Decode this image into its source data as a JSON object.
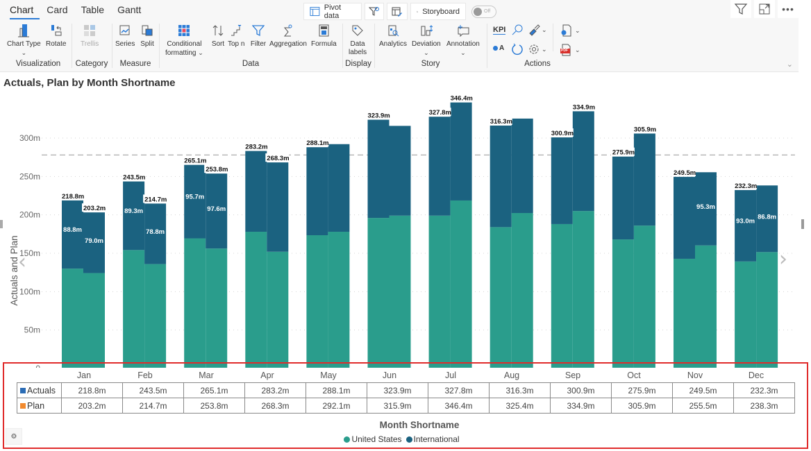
{
  "ribbon": {
    "tabs": [
      {
        "label": "Chart",
        "active": true
      },
      {
        "label": "Card",
        "active": false
      },
      {
        "label": "Table",
        "active": false
      },
      {
        "label": "Gantt",
        "active": false
      }
    ],
    "top_buttons": {
      "pivot": "Pivot data",
      "storyboard": "Storyboard",
      "toggle": "Off"
    },
    "groups": {
      "visualization": {
        "title": "Visualization",
        "chart_type": "Chart Type",
        "rotate": "Rotate"
      },
      "category": {
        "title": "Category",
        "trellis": "Trellis"
      },
      "measure": {
        "title": "Measure",
        "series": "Series",
        "split": "Split"
      },
      "data": {
        "title": "Data",
        "conditional_1": "Conditional",
        "conditional_2": "formatting",
        "sort": "Sort",
        "topn": "Top n",
        "filter": "Filter",
        "aggregation": "Aggregation",
        "formula": "Formula"
      },
      "display": {
        "title": "Display",
        "labels_1": "Data",
        "labels_2": "labels"
      },
      "story": {
        "title": "Story",
        "analytics": "Analytics",
        "deviation": "Deviation",
        "annotation": "Annotation"
      },
      "actions": {
        "title": "Actions",
        "kpi": "KPI",
        "pdf": "PDF",
        "ca": "A"
      }
    }
  },
  "chart_data": {
    "type": "bar",
    "subtype": "stacked-clustered",
    "title": "Actuals, Plan by Month Shortname",
    "xlabel": "Month Shortname",
    "ylabel": "Actuals and Plan",
    "ylim": [
      0,
      350
    ],
    "yticks": [
      {
        "value": 0,
        "label": "0"
      },
      {
        "value": 50,
        "label": "50m"
      },
      {
        "value": 100,
        "label": "100m"
      },
      {
        "value": 150,
        "label": "150m"
      },
      {
        "value": 200,
        "label": "200m"
      },
      {
        "value": 250,
        "label": "250m"
      },
      {
        "value": 300,
        "label": "300m"
      }
    ],
    "grid": true,
    "reference_line": 278,
    "categories": [
      "Jan",
      "Feb",
      "Mar",
      "Apr",
      "May",
      "Jun",
      "Jul",
      "Aug",
      "Sep",
      "Oct",
      "Nov",
      "Dec"
    ],
    "stack_legend": [
      {
        "name": "United States",
        "color": "#2a9d8c"
      },
      {
        "name": "International",
        "color": "#1b6280"
      }
    ],
    "legend_position": "bottom-center",
    "measures": [
      {
        "name": "Actuals",
        "table_color": "#2b6cb5",
        "totals": [
          218.8,
          243.5,
          265.1,
          283.2,
          288.1,
          323.9,
          327.8,
          316.3,
          300.9,
          275.9,
          249.5,
          232.3
        ],
        "total_labels": [
          "218.8m",
          "243.5m",
          "265.1m",
          "283.2m",
          "288.1m",
          "323.9m",
          "327.8m",
          "316.3m",
          "300.9m",
          "275.9m",
          "249.5m",
          "232.3m"
        ],
        "united_states": [
          130.0,
          154.2,
          169.4,
          178.0,
          173.5,
          196.0,
          199.0,
          184.0,
          188.0,
          168.0,
          142.8,
          139.3
        ],
        "international": [
          88.8,
          89.3,
          95.7,
          105.2,
          114.6,
          127.9,
          128.8,
          132.3,
          112.9,
          107.9,
          106.7,
          93.0
        ],
        "international_labels": [
          "88.8m",
          "89.3m",
          "95.7m",
          "",
          "",
          "",
          "",
          "",
          "",
          "",
          "",
          "93.0m"
        ]
      },
      {
        "name": "Plan",
        "table_color": "#f28a2e",
        "totals": [
          203.2,
          214.7,
          253.8,
          268.3,
          292.1,
          315.9,
          346.4,
          325.4,
          334.9,
          305.9,
          255.5,
          238.3
        ],
        "total_labels": [
          "203.2m",
          "214.7m",
          "253.8m",
          "268.3m",
          "",
          "",
          "346.4m",
          "",
          "334.9m",
          "305.9m",
          "",
          ""
        ],
        "table_labels": [
          "203.2m",
          "214.7m",
          "253.8m",
          "268.3m",
          "292.1m",
          "315.9m",
          "346.4m",
          "325.4m",
          "334.9m",
          "305.9m",
          "255.5m",
          "238.3m"
        ],
        "united_states": [
          124.2,
          135.9,
          156.2,
          152.0,
          178.0,
          199.0,
          218.7,
          202.4,
          205.0,
          186.0,
          160.2,
          151.5
        ],
        "international": [
          79.0,
          78.8,
          97.6,
          116.3,
          114.1,
          116.9,
          127.7,
          123.0,
          129.9,
          119.9,
          95.3,
          86.8
        ],
        "international_labels": [
          "79.0m",
          "78.8m",
          "97.6m",
          "",
          "",
          "",
          "",
          "",
          "",
          "",
          "95.3m",
          "86.8m"
        ]
      }
    ]
  }
}
